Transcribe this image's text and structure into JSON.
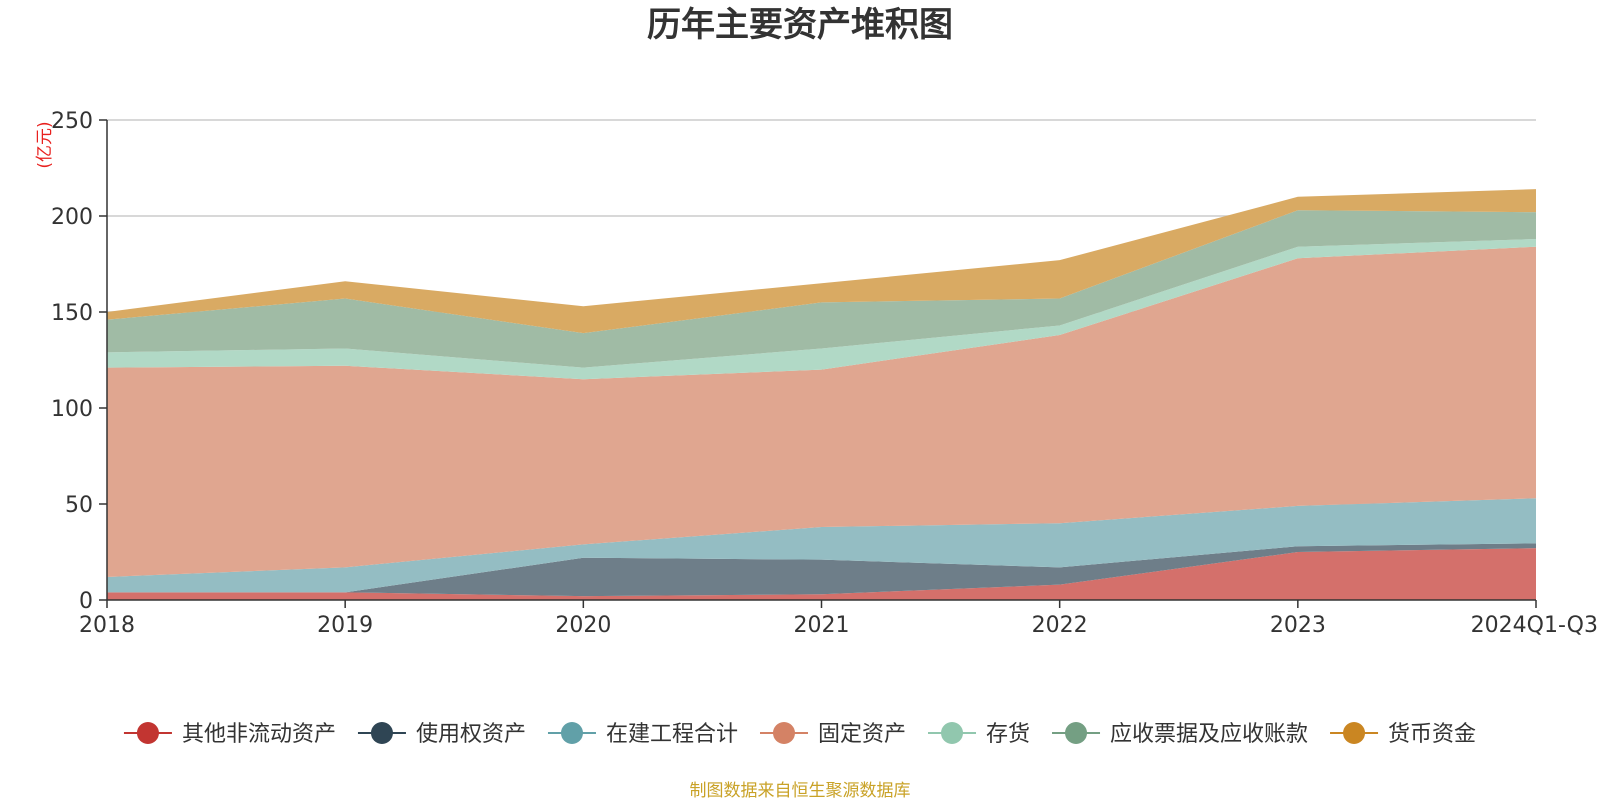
{
  "chart_data": {
    "type": "area",
    "stacked": true,
    "title": "历年主要资产堆积图",
    "unit_label": "(亿元)",
    "categories": [
      "2018",
      "2019",
      "2020",
      "2021",
      "2022",
      "2023",
      "2024Q1-Q3"
    ],
    "y_ticks": [
      "0",
      "50",
      "100",
      "150",
      "200",
      "250"
    ],
    "ylim": [
      0,
      250
    ],
    "grid": true,
    "legend_position": "bottom",
    "series": [
      {
        "name": "其他非流动资产",
        "color": "#c23531",
        "fill": "#d4706b",
        "values": [
          4,
          4,
          2,
          3,
          8,
          25,
          27
        ]
      },
      {
        "name": "使用权资产",
        "color": "#2f4554",
        "fill": "#6e7e89",
        "values": [
          0,
          0,
          20,
          18,
          9,
          3,
          2.5
        ]
      },
      {
        "name": "在建工程合计",
        "color": "#61a0a8",
        "fill": "#94bdc3",
        "values": [
          8,
          13,
          7,
          17,
          23,
          21,
          23.5
        ]
      },
      {
        "name": "固定资产",
        "color": "#d48265",
        "fill": "#e0a690",
        "values": [
          109,
          105,
          86,
          82,
          98,
          129,
          131
        ]
      },
      {
        "name": "存货",
        "color": "#91c7ae",
        "fill": "#b1d9c6",
        "values": [
          8,
          9,
          6,
          11,
          5,
          6,
          4
        ]
      },
      {
        "name": "应收票据及应收账款",
        "color": "#749f83",
        "fill": "#a0bba5",
        "values": [
          17,
          26,
          18,
          24,
          14,
          19,
          14
        ]
      },
      {
        "name": "货币资金",
        "color": "#ca8622",
        "fill": "#d9aa63",
        "values": [
          4,
          9,
          14,
          10,
          20,
          7,
          12
        ]
      }
    ]
  },
  "source_text": "制图数据来自恒生聚源数据库"
}
